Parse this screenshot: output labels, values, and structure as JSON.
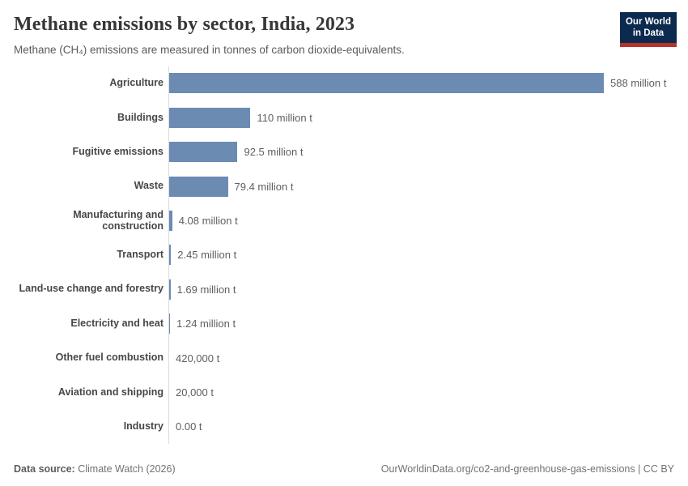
{
  "header": {
    "title": "Methane emissions by sector, India, 2023",
    "subtitle": "Methane (CH₄) emissions are measured in tonnes of carbon dioxide-equivalents."
  },
  "logo": {
    "line1": "Our World",
    "line2": "in Data",
    "bg_color": "#0b2a4e",
    "accent_color": "#b73229"
  },
  "chart_data": {
    "type": "bar",
    "orientation": "horizontal",
    "title": "Methane emissions by sector, India, 2023",
    "xlabel": "",
    "ylabel": "",
    "unit": "tonnes CO2-eq",
    "xlim": [
      0,
      588000000
    ],
    "grid": false,
    "legend": "none",
    "bar_color": "#6c8bb3",
    "axis_line_color": "#dcdcdc",
    "categories": [
      "Agriculture",
      "Buildings",
      "Fugitive emissions",
      "Waste",
      "Manufacturing and construction",
      "Transport",
      "Land-use change and forestry",
      "Electricity and heat",
      "Other fuel combustion",
      "Aviation and shipping",
      "Industry"
    ],
    "values": [
      588000000,
      110000000,
      92500000,
      79400000,
      4080000,
      2450000,
      1690000,
      1240000,
      420000,
      20000,
      0
    ],
    "value_labels": [
      "588 million t",
      "110 million t",
      "92.5 million t",
      "79.4 million t",
      "4.08 million t",
      "2.45 million t",
      "1.69 million t",
      "1.24 million t",
      "420,000 t",
      "20,000 t",
      "0.00 t"
    ]
  },
  "footer": {
    "source_label": "Data source:",
    "source_value": " Climate Watch (2026)",
    "attribution": "OurWorldinData.org/co2-and-greenhouse-gas-emissions | CC BY"
  }
}
